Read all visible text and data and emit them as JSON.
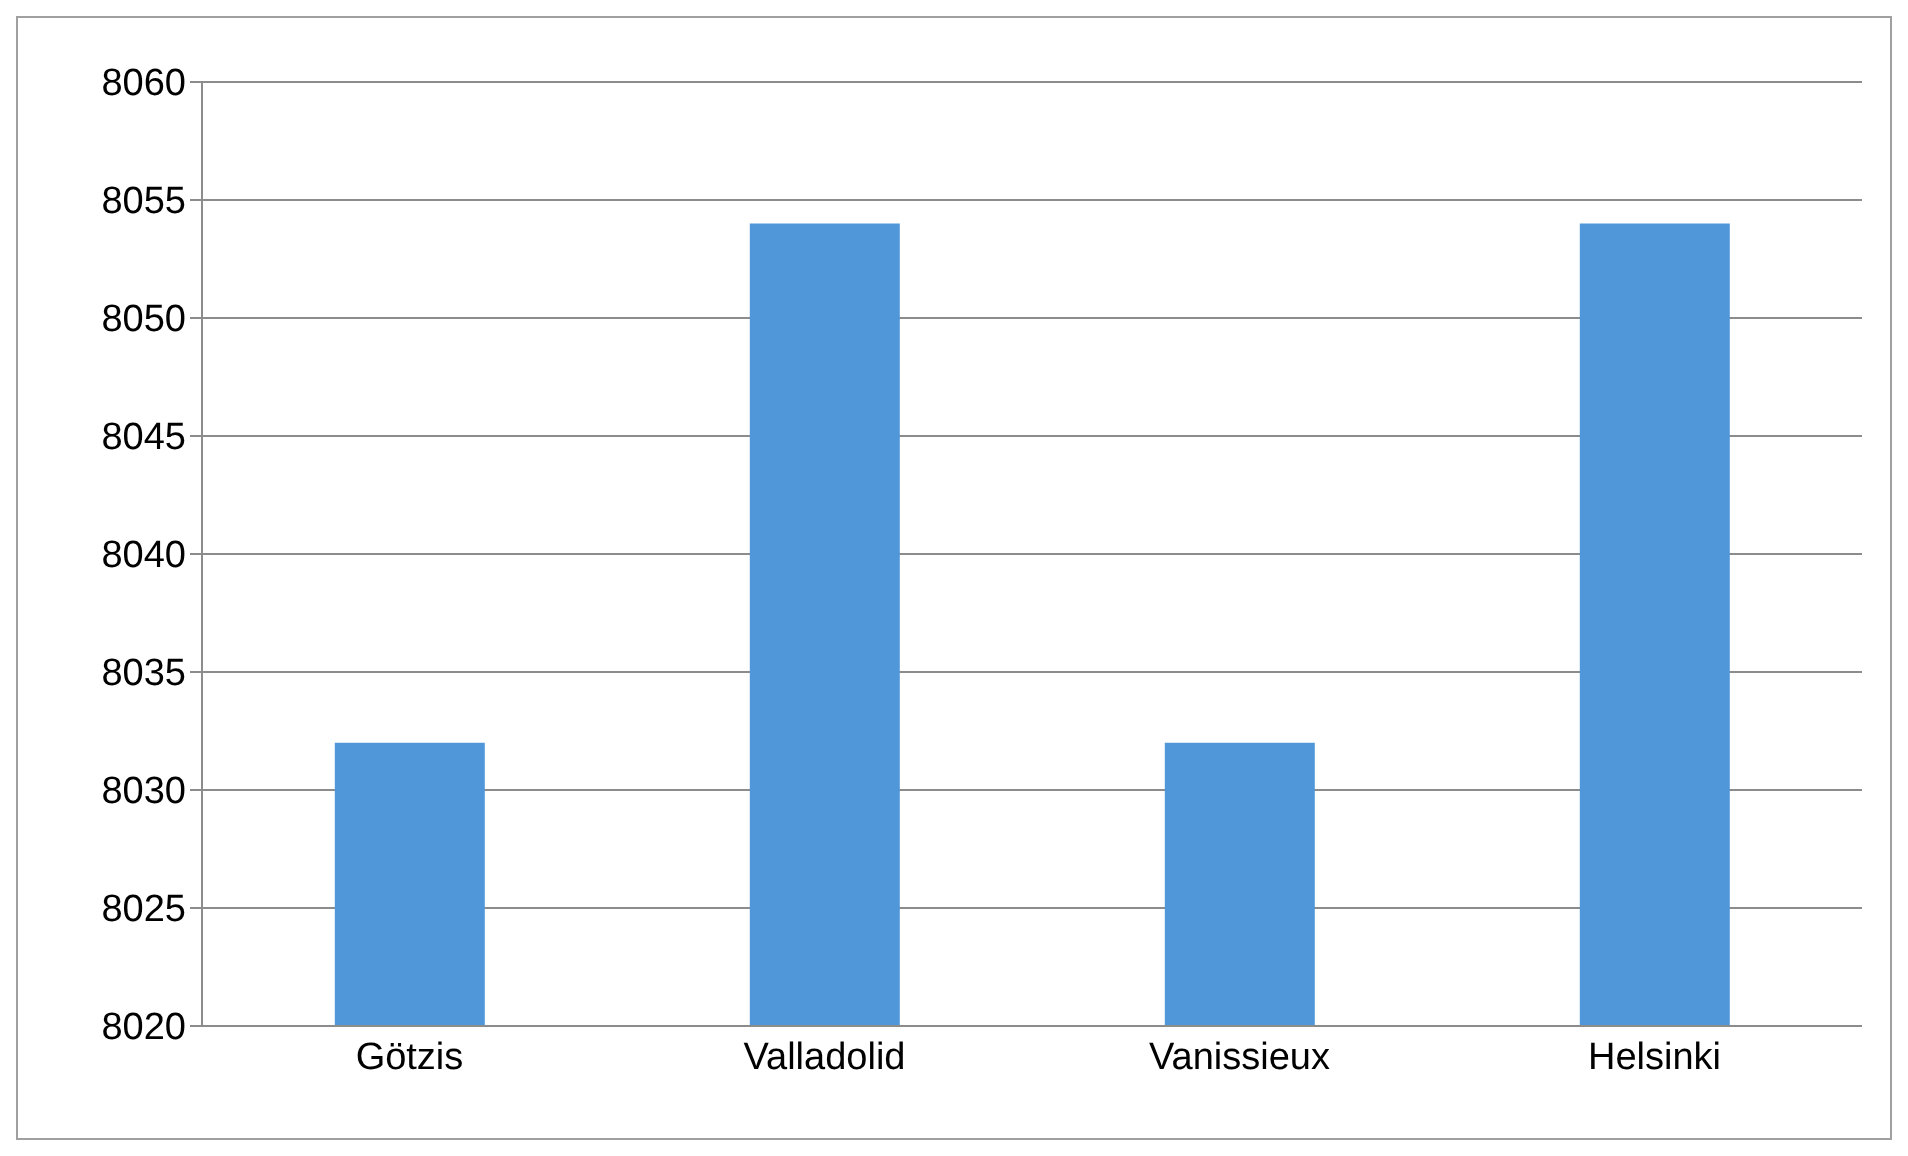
{
  "chart_data": {
    "type": "bar",
    "categories": [
      "Götzis",
      "Valladolid",
      "Vanissieux",
      "Helsinki"
    ],
    "values": [
      8032,
      8054,
      8032,
      8054
    ],
    "color": "#4f97d9",
    "ylim": [
      8020,
      8060
    ],
    "yticks": [
      8020,
      8025,
      8030,
      8035,
      8040,
      8045,
      8050,
      8055,
      8060
    ],
    "grid": "y"
  }
}
